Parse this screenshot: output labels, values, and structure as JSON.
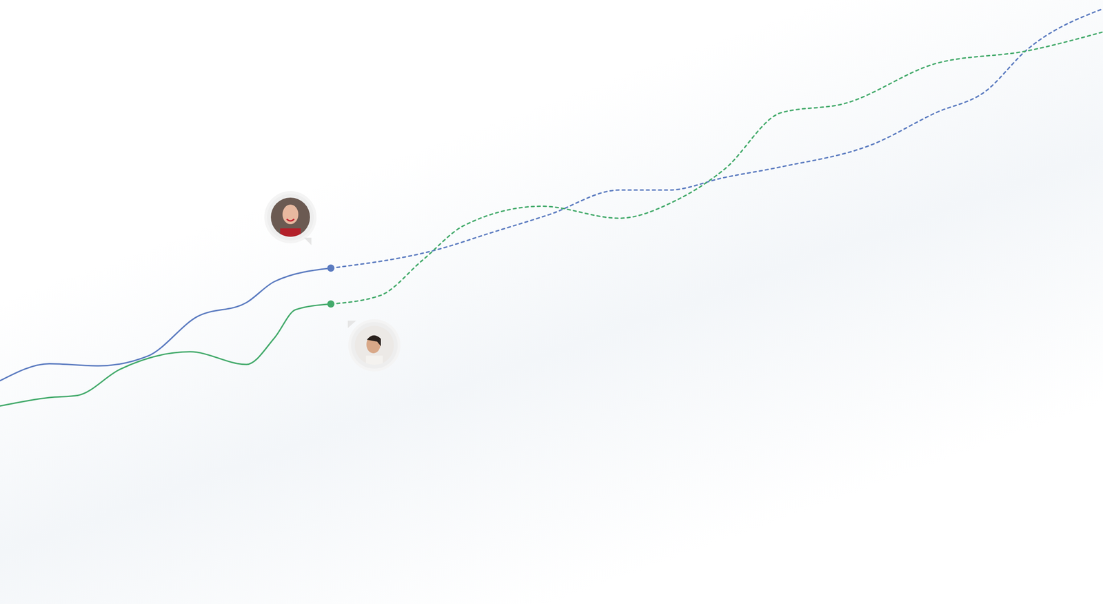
{
  "chart_data": {
    "type": "line",
    "xlim": [
      0,
      1568
    ],
    "ylim": [
      0,
      859
    ],
    "tick_labels": false,
    "grid": false,
    "series": [
      {
        "color": "#5b7bc0",
        "line_style": "solid",
        "marker": "dot",
        "x": [
          0,
          70,
          140,
          210,
          280,
          350,
          390,
          470
        ],
        "values": [
          318,
          342,
          339,
          353,
          409,
          429,
          459,
          478
        ]
      },
      {
        "color": "#5b7bc0",
        "line_style": "dashed",
        "x": [
          470,
          620,
          700,
          780,
          880,
          950,
          1030,
          1110,
          1240,
          1330,
          1400,
          1460,
          1568
        ],
        "values": [
          478,
          504,
          529,
          554,
          589,
          589,
          607,
          622,
          654,
          699,
          729,
          789,
          847
        ]
      },
      {
        "color": "#43aa6b",
        "line_style": "solid",
        "marker": "dot",
        "x": [
          0,
          70,
          110,
          170,
          270,
          350,
          390,
          420,
          470
        ],
        "values": [
          282,
          294,
          297,
          334,
          359,
          341,
          379,
          419,
          427
        ]
      },
      {
        "color": "#43aa6b",
        "line_style": "dashed",
        "x": [
          470,
          540,
          600,
          660,
          770,
          880,
          960,
          1030,
          1110,
          1200,
          1330,
          1460,
          1568
        ],
        "values": [
          427,
          439,
          489,
          539,
          566,
          549,
          574,
          619,
          699,
          712,
          769,
          787,
          814
        ]
      }
    ]
  }
}
